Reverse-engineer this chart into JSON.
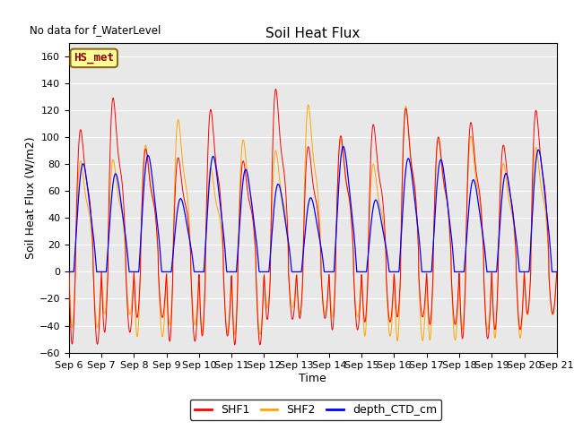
{
  "title": "Soil Heat Flux",
  "xlabel": "Time",
  "ylabel": "Soil Heat Flux (W/m2)",
  "top_left_text": "No data for f_WaterLevel",
  "legend_label_text": "HS_met",
  "ylim": [
    -60,
    170
  ],
  "yticks": [
    -60,
    -40,
    -20,
    0,
    20,
    40,
    60,
    80,
    100,
    120,
    140,
    160
  ],
  "series": [
    "SHF1",
    "SHF2",
    "depth_CTD_cm"
  ],
  "colors": [
    "red",
    "orange",
    "blue"
  ],
  "plot_bg_color": "#e8e8e8",
  "n_days": 15,
  "start_day": 6
}
